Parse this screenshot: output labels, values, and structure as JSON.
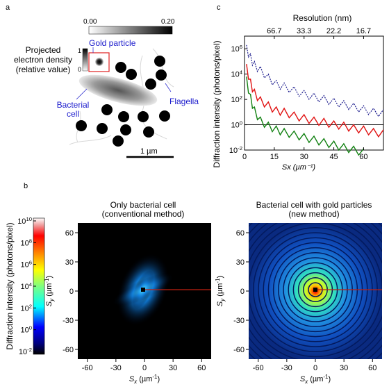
{
  "panels": {
    "a": "a",
    "b": "b",
    "c": "c"
  },
  "panel_a": {
    "density_colorbar": {
      "min_label": "0.00",
      "max_label": "0.20"
    },
    "small_colorbar": {
      "top_label": "1",
      "bottom_label": "0"
    },
    "density_label_lines": [
      "Projected",
      "electron density",
      "(relative value)"
    ],
    "gold_particle_label": "Gold particle",
    "bacterial_cell_lines": [
      "Bacterial",
      "cell"
    ],
    "flagella_label": "Flagella",
    "scale_bar_label": "1 µm",
    "colors": {
      "annotation_blue": "#1a1acc",
      "box_red": "#e02020"
    }
  },
  "panel_b": {
    "colorbar_label": "Diffraction intensity (photons/pixel)",
    "colorbar_ticks": [
      {
        "base": "10",
        "exp": "10"
      },
      {
        "base": "10",
        "exp": "8"
      },
      {
        "base": "10",
        "exp": "6"
      },
      {
        "base": "10",
        "exp": "4"
      },
      {
        "base": "10",
        "exp": "2"
      },
      {
        "base": "10",
        "exp": "0"
      },
      {
        "base": "10",
        "exp": "-2"
      }
    ],
    "left_title_lines": [
      "Only bacterial cell",
      "(conventional method)"
    ],
    "right_title_lines": [
      "Bacterial cell with gold particles",
      "(new method)"
    ],
    "x_ticks": [
      "-60",
      "-30",
      "0",
      "30",
      "60"
    ],
    "y_ticks": [
      "60",
      "30",
      "0",
      "-30",
      "-60"
    ],
    "xlabel": {
      "main": "S",
      "sub": "x",
      "unit": "(µm",
      "unit_exp": "-1",
      "unit_close": ")"
    },
    "ylabel": {
      "main": "S",
      "sub": "y",
      "unit": "(µm",
      "unit_exp": "-1",
      "unit_close": ")"
    }
  },
  "chart_data": {
    "type": "line",
    "title": "Resolution (nm)",
    "top_axis_ticks": [
      "66.7",
      "33.3",
      "22.2",
      "16.7"
    ],
    "xlabel": "Sx (µm⁻¹)",
    "ylabel": "Diffraction intensity (photons/pixel)",
    "x_ticks": [
      0,
      15,
      30,
      45,
      60
    ],
    "y_tick_labels": [
      {
        "base": "10",
        "exp": "6"
      },
      {
        "base": "10",
        "exp": "4"
      },
      {
        "base": "10",
        "exp": "2"
      },
      {
        "base": "10",
        "exp": "0"
      },
      {
        "base": "10",
        "exp": "-2"
      }
    ],
    "xlim": [
      0,
      70
    ],
    "ylim_log10": [
      -2,
      7
    ],
    "series": [
      {
        "color": "#1a1a8c",
        "style": "dotted",
        "x": [
          1,
          3,
          5,
          8,
          12,
          16,
          20,
          25,
          30,
          35,
          40,
          45,
          50,
          55,
          60,
          65,
          70
        ],
        "log10_y": [
          6.3,
          5.6,
          5.0,
          4.6,
          4.0,
          3.5,
          3.3,
          3.0,
          2.7,
          2.5,
          2.3,
          2.1,
          1.9,
          1.7,
          1.5,
          1.3,
          1.2
        ]
      },
      {
        "color": "#e01010",
        "style": "solid",
        "x": [
          1,
          3,
          5,
          8,
          12,
          16,
          20,
          25,
          30,
          35,
          40,
          45,
          50,
          55,
          60,
          65,
          70
        ],
        "log10_y": [
          4.8,
          3.6,
          2.8,
          2.2,
          1.8,
          1.4,
          1.3,
          1.0,
          0.8,
          0.6,
          0.5,
          0.3,
          0.2,
          0.0,
          -0.1,
          -0.3,
          -0.4
        ]
      },
      {
        "color": "#108010",
        "style": "solid",
        "x": [
          1,
          3,
          5,
          8,
          12,
          16,
          20,
          25,
          30,
          35,
          40,
          45,
          50,
          55,
          60
        ],
        "log10_y": [
          3.8,
          2.4,
          1.4,
          0.6,
          0.2,
          -0.1,
          -0.3,
          -0.5,
          -0.7,
          -0.9,
          -1.1,
          -1.3,
          -1.5,
          -1.7,
          -1.9
        ]
      }
    ]
  }
}
